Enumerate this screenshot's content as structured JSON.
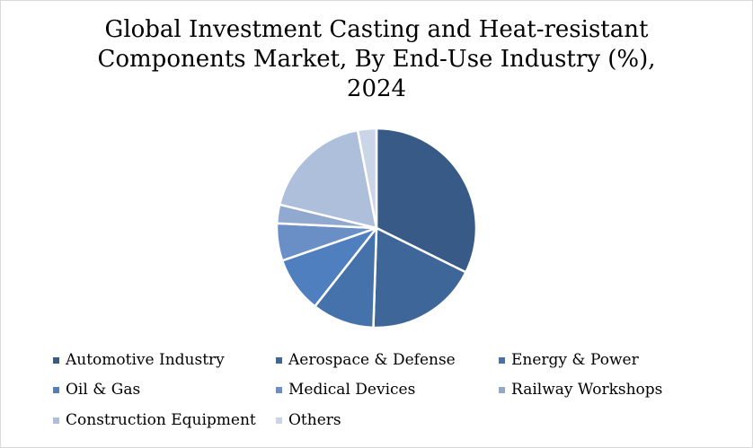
{
  "chart_data": {
    "type": "pie",
    "title_lines": [
      "Global Investment Casting and Heat-resistant",
      "Components Market, By End-Use Industry (%),",
      "2024"
    ],
    "series": [
      {
        "name": "Automotive Industry",
        "value": 32,
        "color": "#375a86"
      },
      {
        "name": "Aerospace & Defense",
        "value": 18,
        "color": "#3e6699"
      },
      {
        "name": "Energy & Power",
        "value": 10,
        "color": "#4572aa"
      },
      {
        "name": "Oil & Gas",
        "value": 9,
        "color": "#4f7fbf"
      },
      {
        "name": "Medical Devices",
        "value": 6,
        "color": "#6a8fc6"
      },
      {
        "name": "Railway Workshops",
        "value": 3,
        "color": "#92a9cf"
      },
      {
        "name": "Construction Equipment",
        "value": 18,
        "color": "#adbfdb"
      },
      {
        "name": "Others",
        "value": 3,
        "color": "#cad5e8"
      }
    ],
    "legend_position": "bottom",
    "start_angle_deg": 0,
    "direction": "clockwise"
  }
}
